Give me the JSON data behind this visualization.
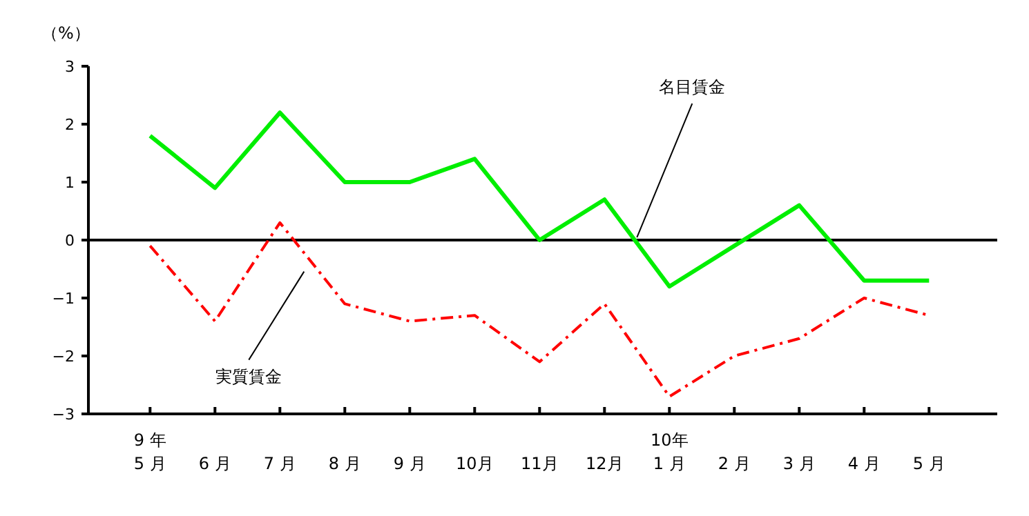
{
  "chart_data": {
    "type": "line",
    "ylabel": "（%）",
    "categories": [
      "9 年\n5 月",
      "6 月",
      "7 月",
      "8 月",
      "9 月",
      "10月",
      "11月",
      "12月",
      "10年\n1 月",
      "2 月",
      "3 月",
      "4 月",
      "5 月"
    ],
    "series": [
      {
        "name": "名目賃金",
        "color": "#00ee00",
        "line_style": "solid",
        "values": [
          1.8,
          0.9,
          2.2,
          1.0,
          1.0,
          1.4,
          0.0,
          0.7,
          -0.8,
          -0.1,
          0.6,
          -0.7,
          -0.7
        ]
      },
      {
        "name": "実質賃金",
        "color": "#ff0000",
        "line_style": "dashed",
        "values": [
          -0.1,
          -1.4,
          0.3,
          -1.1,
          -1.4,
          -1.3,
          -2.1,
          -1.1,
          -2.7,
          -2.0,
          -1.7,
          -1.0,
          -1.3
        ]
      }
    ],
    "ylim": [
      -3,
      3
    ],
    "yticks": [
      -3,
      -2,
      -1,
      0,
      1,
      2,
      3
    ],
    "ref_lines": [
      {
        "axis": "y",
        "value": 0,
        "color": "#000000"
      }
    ],
    "grid": false,
    "marker": "none"
  }
}
